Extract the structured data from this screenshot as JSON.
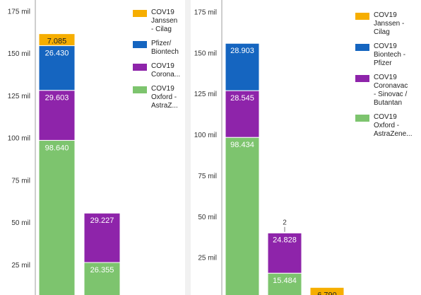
{
  "chart_data": [
    {
      "type": "bar",
      "stacked": true,
      "ylim": [
        0,
        175000
      ],
      "y_ticks": [
        "25 mil",
        "50 mil",
        "75 mil",
        "100 mil",
        "125 mil",
        "150 mil",
        "175 mil"
      ],
      "y_tick_values": [
        25000,
        50000,
        75000,
        100000,
        125000,
        150000,
        175000
      ],
      "grid": false,
      "legend_position": "top-right",
      "categories": [
        "",
        ""
      ],
      "series": [
        {
          "name": "COV19 Oxford - AstraZ...",
          "color": "#7dc46e",
          "values": [
            98640,
            26355
          ],
          "labels": [
            "98.640",
            "26.355"
          ]
        },
        {
          "name": "COV19 Corona...",
          "color": "#8e24aa",
          "values": [
            29603,
            29227
          ],
          "labels": [
            "29.603",
            "29.227"
          ]
        },
        {
          "name": "Pfizer/ Biontech",
          "color": "#1565c0",
          "values": [
            26430,
            0
          ],
          "labels": [
            "26.430",
            ""
          ]
        },
        {
          "name": "COV19 Janssen - Cilag",
          "color": "#f6ae00",
          "values": [
            7085,
            0
          ],
          "labels": [
            "7.085",
            ""
          ]
        }
      ]
    },
    {
      "type": "bar",
      "stacked": true,
      "ylim": [
        0,
        175000
      ],
      "y_ticks": [
        "25 mil",
        "50 mil",
        "75 mil",
        "100 mil",
        "125 mil",
        "150 mil",
        "175 mil"
      ],
      "y_tick_values": [
        25000,
        50000,
        75000,
        100000,
        125000,
        150000,
        175000
      ],
      "grid": false,
      "legend_position": "top-right",
      "categories": [
        "",
        "",
        ""
      ],
      "series": [
        {
          "name": "COV19 Oxford - AstraZene...",
          "color": "#7dc46e",
          "values": [
            98434,
            15484,
            0
          ],
          "labels": [
            "98.434",
            "15.484",
            ""
          ]
        },
        {
          "name": "COV19 Coronavac - Sinovac / Butantan",
          "color": "#8e24aa",
          "values": [
            28545,
            24828,
            0
          ],
          "labels": [
            "28.545",
            "24.828",
            ""
          ]
        },
        {
          "name": "COV19 Biontech - Pfizer",
          "color": "#1565c0",
          "values": [
            28903,
            2,
            0
          ],
          "labels": [
            "28.903",
            "2",
            ""
          ]
        },
        {
          "name": "COV19 Janssen - Cilag",
          "color": "#f6ae00",
          "values": [
            0,
            0,
            6790
          ],
          "labels": [
            "",
            "",
            "6.790"
          ]
        }
      ]
    }
  ],
  "legends": {
    "left": [
      {
        "label": "COV19\nJanssen\n- Cilag",
        "color": "#f6ae00",
        "icon": "legend-swatch"
      },
      {
        "label": "Pfizer/\nBiontech",
        "color": "#1565c0",
        "icon": "legend-swatch"
      },
      {
        "label": "COV19\nCorona...",
        "color": "#8e24aa",
        "icon": "legend-swatch"
      },
      {
        "label": "COV19\nOxford -\nAstraZ...",
        "color": "#7dc46e",
        "icon": "legend-swatch"
      }
    ],
    "right": [
      {
        "label": "COV19\nJanssen -\nCilag",
        "color": "#f6ae00",
        "icon": "legend-swatch"
      },
      {
        "label": "COV19\nBiontech -\nPfizer",
        "color": "#1565c0",
        "icon": "legend-swatch"
      },
      {
        "label": "COV19\nCoronavac\n- Sinovac /\nButantan",
        "color": "#8e24aa",
        "icon": "legend-swatch"
      },
      {
        "label": "COV19\nOxford -\nAstraZene...",
        "color": "#7dc46e",
        "icon": "legend-swatch"
      }
    ]
  }
}
